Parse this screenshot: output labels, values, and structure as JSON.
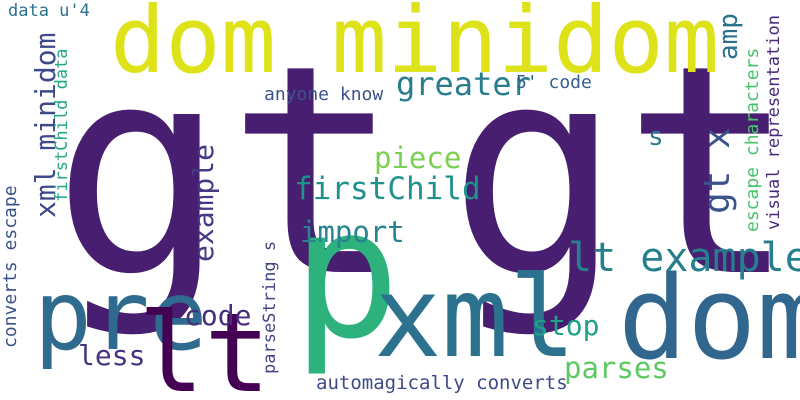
{
  "words": [
    {
      "id": "gt1",
      "text": "gt",
      "color": "#481f70"
    },
    {
      "id": "gt2",
      "text": "gt",
      "color": "#481f70"
    },
    {
      "id": "dom_minidom",
      "text": "dom minidom",
      "color": "#dde318"
    },
    {
      "id": "p",
      "text": "p",
      "color": "#2db27d"
    },
    {
      "id": "xml_big",
      "text": "xml",
      "color": "#2c728e"
    },
    {
      "id": "dom_big",
      "text": "dom",
      "color": "#31668e"
    },
    {
      "id": "pre",
      "text": "pre",
      "color": "#2f6b8e"
    },
    {
      "id": "lt_big",
      "text": "lt",
      "color": "#440154"
    },
    {
      "id": "lt_example",
      "text": "lt example",
      "color": "#277f8e"
    },
    {
      "id": "gt_x",
      "text": "gt x",
      "color": "#3b528b"
    },
    {
      "id": "greater",
      "text": "greater",
      "color": "#287d8e"
    },
    {
      "id": "firstChild",
      "text": "firstChild",
      "color": "#21918c"
    },
    {
      "id": "piece",
      "text": "piece",
      "color": "#7ad151"
    },
    {
      "id": "import",
      "text": "import",
      "color": "#26838f"
    },
    {
      "id": "xml_minidom",
      "text": "xml minidom",
      "color": "#3e4a89"
    },
    {
      "id": "example_v",
      "text": "example",
      "color": "#443983"
    },
    {
      "id": "code_mid",
      "text": "code",
      "color": "#472d7b"
    },
    {
      "id": "less",
      "text": "less",
      "color": "#46327e"
    },
    {
      "id": "stop",
      "text": "stop",
      "color": "#1fa088"
    },
    {
      "id": "parses",
      "text": "parses",
      "color": "#5ec962"
    },
    {
      "id": "automagically",
      "text": "automagically converts",
      "color": "#3e4989"
    },
    {
      "id": "anyone_know",
      "text": "anyone know",
      "color": "#3b528b"
    },
    {
      "id": "code_5",
      "text": "5' code",
      "color": "#355f8d"
    },
    {
      "id": "s_small",
      "text": "s",
      "color": "#2a788e"
    },
    {
      "id": "amp",
      "text": "amp",
      "color": "#2c728e"
    },
    {
      "id": "data_u4",
      "text": "data u'4",
      "color": "#2c728e"
    },
    {
      "id": "firstChild_data",
      "text": "firstChild data",
      "color": "#22a884"
    },
    {
      "id": "converts_escape",
      "text": "converts escape",
      "color": "#3b528b"
    },
    {
      "id": "parseString",
      "text": "parseString s",
      "color": "#414487"
    },
    {
      "id": "escape_characters",
      "text": "escape characters",
      "color": "#4ac16d"
    },
    {
      "id": "visual_representation",
      "text": "visual representation",
      "color": "#482878"
    }
  ]
}
